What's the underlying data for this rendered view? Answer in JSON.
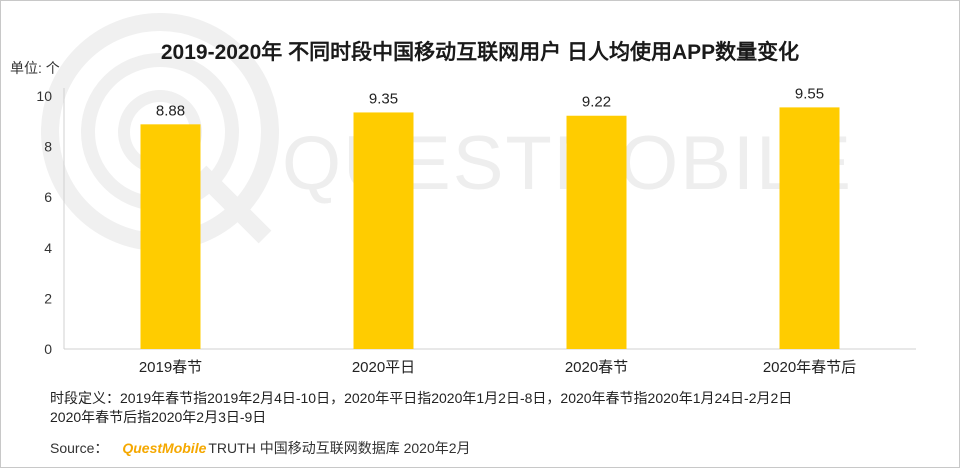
{
  "title": "2019-2020年 不同时段中国移动互联网用户 日人均使用APP数量变化",
  "unit_label": "单位: 个",
  "watermark": "QUESTMOBILE",
  "notes": [
    "时段定义：2019年春节指2019年2月4日-10日，2020年平日指2020年1月2日-8日，2020年春节指2020年1月24日-2月2日",
    "2020年春节后指2020年2月3日-9日"
  ],
  "source": {
    "label": "Source：",
    "brand": "QuestMobile",
    "text": "TRUTH 中国移动互联网数据库 2020年2月"
  },
  "colors": {
    "bar": "#ffcc00",
    "axis": "#d0d0d0",
    "brand": "#f5a800"
  },
  "chart_data": {
    "type": "bar",
    "title": "2019-2020年 不同时段中国移动互联网用户 日人均使用APP数量变化",
    "ylabel": "单位: 个",
    "categories": [
      "2019春节",
      "2020平日",
      "2020春节",
      "2020年春节后"
    ],
    "values": [
      8.88,
      9.35,
      9.22,
      9.55
    ],
    "data_labels": [
      "8.88",
      "9.35",
      "9.22",
      "9.55"
    ],
    "yticks": [
      0,
      2,
      4,
      6,
      8,
      10
    ],
    "ylim": [
      0,
      10
    ],
    "grid": false,
    "legend": "none"
  }
}
